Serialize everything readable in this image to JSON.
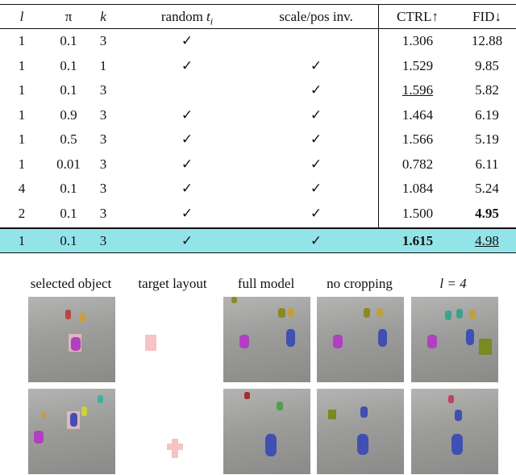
{
  "table": {
    "header": [
      "l",
      "π",
      "k",
      {
        "text": "random",
        "math": "t",
        "sub": "i"
      },
      "scale/pos inv.",
      "CTRL↑",
      "FID↓"
    ],
    "rows": [
      [
        "1",
        "0.1",
        "3",
        "✓",
        null,
        "1.306",
        "12.88"
      ],
      [
        "1",
        "0.1",
        "1",
        "✓",
        "✓",
        "1.529",
        "9.85"
      ],
      [
        "1",
        "0.1",
        "3",
        null,
        "✓",
        "1.596",
        "5.82"
      ],
      [
        "1",
        "0.9",
        "3",
        "✓",
        "✓",
        "1.464",
        "6.19"
      ],
      [
        "1",
        "0.5",
        "3",
        "✓",
        "✓",
        "1.566",
        "5.19"
      ],
      [
        "1",
        "0.01",
        "3",
        "✓",
        "✓",
        "0.782",
        "6.11"
      ],
      [
        "4",
        "0.1",
        "3",
        "✓",
        "✓",
        "1.084",
        "5.24"
      ],
      [
        "2",
        "0.1",
        "3",
        "✓",
        "✓",
        "1.500",
        "4.95"
      ],
      [
        "1",
        "0.1",
        "3",
        "✓",
        "✓",
        "1.615",
        "4.98"
      ]
    ]
  },
  "figure": {
    "labels": [
      "selected object",
      "target layout",
      "full model",
      "no cropping",
      "l = 4"
    ]
  }
}
